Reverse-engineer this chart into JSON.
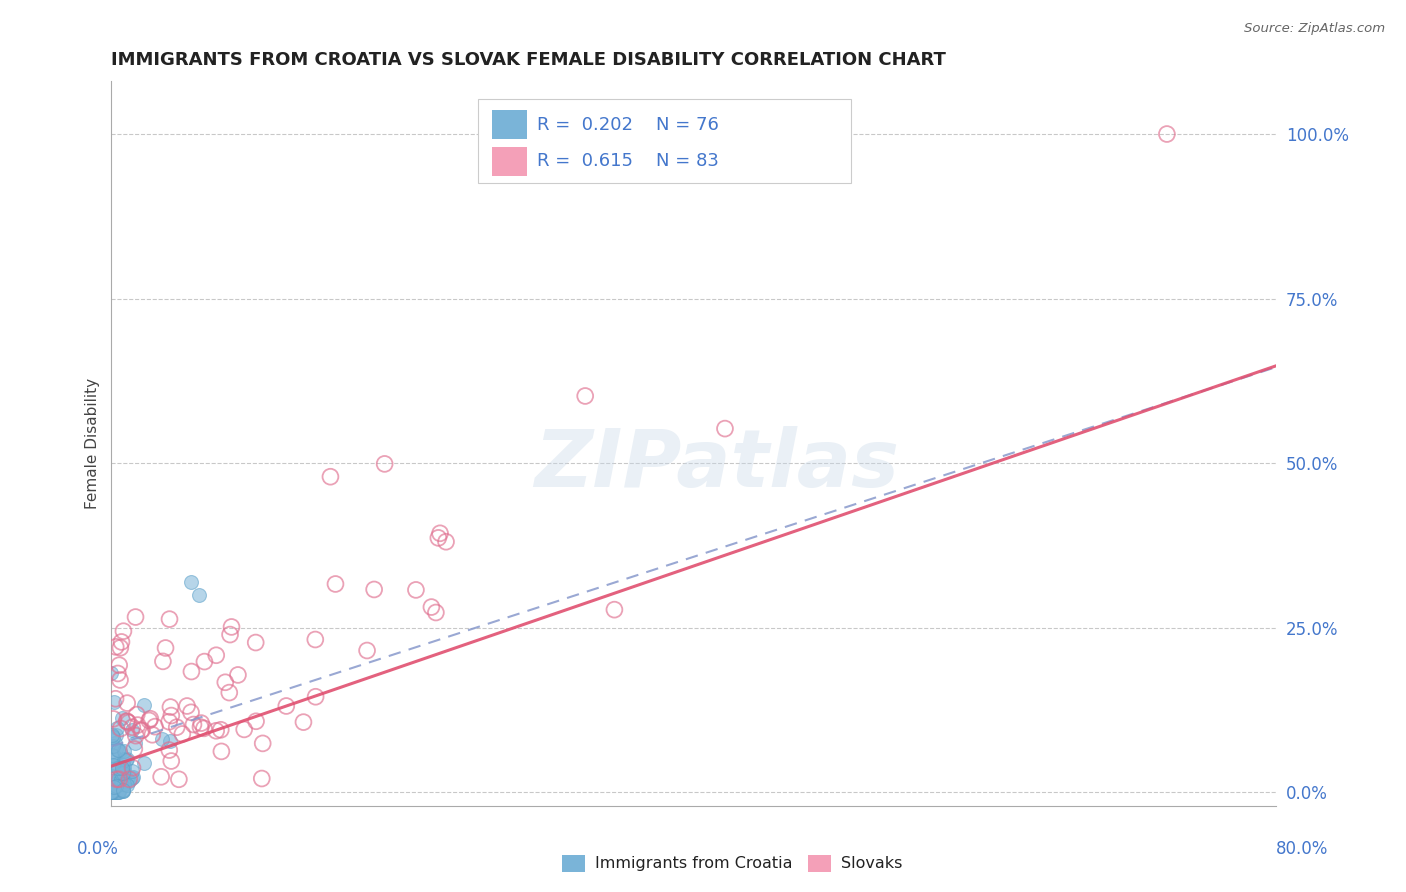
{
  "title": "IMMIGRANTS FROM CROATIA VS SLOVAK FEMALE DISABILITY CORRELATION CHART",
  "source": "Source: ZipAtlas.com",
  "ylabel": "Female Disability",
  "ytick_labels": [
    "0.0%",
    "25.0%",
    "50.0%",
    "75.0%",
    "100.0%"
  ],
  "ytick_values": [
    0.0,
    0.25,
    0.5,
    0.75,
    1.0
  ],
  "xlim": [
    0.0,
    0.8
  ],
  "ylim": [
    -0.02,
    1.08
  ],
  "watermark": "ZIPatlas",
  "croatia_color": "#7ab4d8",
  "croatia_edge": "#5a9fc8",
  "slovak_color": "#f4a0b8",
  "slovak_edge": "#e07090",
  "croatia_R": 0.202,
  "croatia_N": 76,
  "slovak_R": 0.615,
  "slovak_N": 83,
  "trend_blue_color": "#8ab4d8",
  "trend_pink_color": "#e05070",
  "background_color": "#ffffff",
  "grid_color": "#bbbbbb",
  "title_color": "#222222",
  "axis_label_color": "#4477cc",
  "legend_text_color": "#4477cc"
}
